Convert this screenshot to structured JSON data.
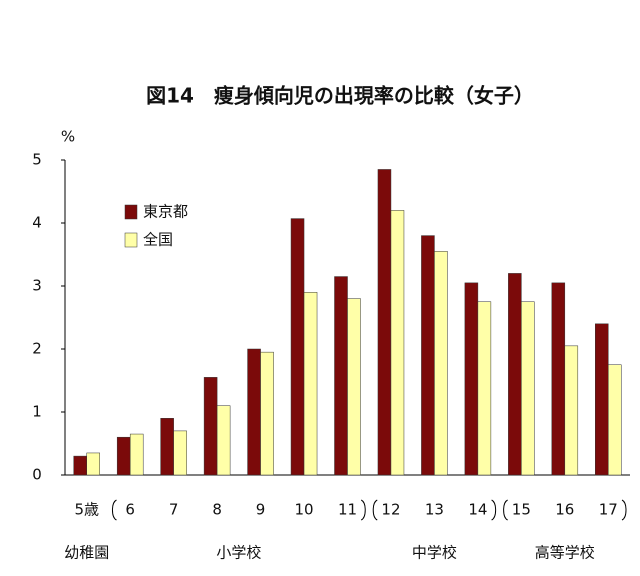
{
  "chart_data": {
    "type": "bar",
    "title": "図14　痩身傾向児の出現率の比較（女子）",
    "y_label": "%",
    "categories": [
      "5歳",
      "6",
      "7",
      "8",
      "9",
      "10",
      "11",
      "12",
      "13",
      "14",
      "15",
      "16",
      "17"
    ],
    "groups": [
      {
        "name": "幼稚園",
        "categories": [
          "5歳"
        ]
      },
      {
        "name": "小学校",
        "categories": [
          "6",
          "7",
          "8",
          "9",
          "10",
          "11"
        ]
      },
      {
        "name": "中学校",
        "categories": [
          "12",
          "13",
          "14"
        ]
      },
      {
        "name": "高等学校",
        "categories": [
          "15",
          "16",
          "17"
        ]
      }
    ],
    "series": [
      {
        "name": "東京都",
        "color": "#7b0a0a",
        "values": [
          0.3,
          0.6,
          0.9,
          1.55,
          2.0,
          4.07,
          3.15,
          4.85,
          3.8,
          3.05,
          3.2,
          3.05,
          2.4
        ]
      },
      {
        "name": "全国",
        "color": "#ffffa8",
        "values": [
          0.35,
          0.65,
          0.7,
          1.1,
          1.95,
          2.9,
          2.8,
          4.2,
          3.55,
          2.75,
          2.75,
          2.05,
          1.75
        ]
      }
    ],
    "ylim": [
      0,
      5
    ],
    "yticks": [
      0,
      1,
      2,
      3,
      4,
      5
    ],
    "grid": false,
    "legend": "upper left"
  }
}
